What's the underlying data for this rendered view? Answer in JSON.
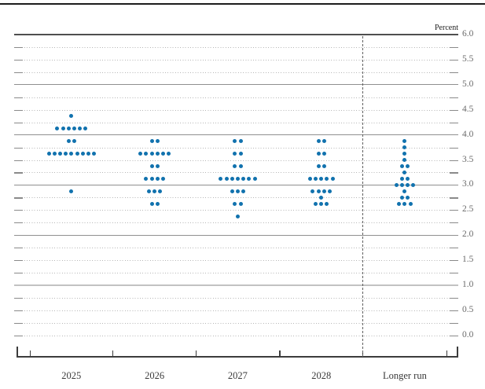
{
  "chart_data": {
    "type": "scatter",
    "chart_kind": "fomc-dot-plot",
    "y_axis_unit": "Percent",
    "categories": [
      "2025",
      "2026",
      "2027",
      "2028",
      "Longer run"
    ],
    "ylim": [
      0.0,
      6.0
    ],
    "y_tick_step": 0.5,
    "gridline_step": 0.25,
    "y_tick_labels": [
      "6.0",
      "5.5",
      "5.0",
      "4.5",
      "4.0",
      "3.5",
      "3.0",
      "2.5",
      "2.0",
      "1.5",
      "1.0",
      "0.5",
      "0.0"
    ],
    "separator_before_category": "Longer run",
    "dot_color": "#1172ae",
    "series": [
      {
        "name": "2025",
        "dots": [
          {
            "value": 4.375,
            "count": 1
          },
          {
            "value": 4.125,
            "count": 6
          },
          {
            "value": 3.875,
            "count": 2
          },
          {
            "value": 3.625,
            "count": 9
          },
          {
            "value": 2.875,
            "count": 1
          }
        ]
      },
      {
        "name": "2026",
        "dots": [
          {
            "value": 3.875,
            "count": 2
          },
          {
            "value": 3.625,
            "count": 6
          },
          {
            "value": 3.375,
            "count": 2
          },
          {
            "value": 3.125,
            "count": 4
          },
          {
            "value": 2.875,
            "count": 3
          },
          {
            "value": 2.625,
            "count": 2
          }
        ]
      },
      {
        "name": "2027",
        "dots": [
          {
            "value": 3.875,
            "count": 2
          },
          {
            "value": 3.625,
            "count": 2
          },
          {
            "value": 3.375,
            "count": 2
          },
          {
            "value": 3.125,
            "count": 7
          },
          {
            "value": 2.875,
            "count": 3
          },
          {
            "value": 2.625,
            "count": 2
          },
          {
            "value": 2.375,
            "count": 1
          }
        ]
      },
      {
        "name": "2028",
        "dots": [
          {
            "value": 3.875,
            "count": 2
          },
          {
            "value": 3.625,
            "count": 2
          },
          {
            "value": 3.375,
            "count": 2
          },
          {
            "value": 3.125,
            "count": 5
          },
          {
            "value": 2.875,
            "count": 4
          },
          {
            "value": 2.75,
            "count": 1
          },
          {
            "value": 2.625,
            "count": 3
          }
        ]
      },
      {
        "name": "Longer run",
        "dots": [
          {
            "value": 3.875,
            "count": 1
          },
          {
            "value": 3.75,
            "count": 1
          },
          {
            "value": 3.625,
            "count": 1
          },
          {
            "value": 3.5,
            "count": 1
          },
          {
            "value": 3.375,
            "count": 2
          },
          {
            "value": 3.25,
            "count": 1
          },
          {
            "value": 3.125,
            "count": 2
          },
          {
            "value": 3.0,
            "count": 4
          },
          {
            "value": 2.875,
            "count": 1
          },
          {
            "value": 2.75,
            "count": 2
          },
          {
            "value": 2.625,
            "count": 3
          }
        ]
      }
    ]
  }
}
